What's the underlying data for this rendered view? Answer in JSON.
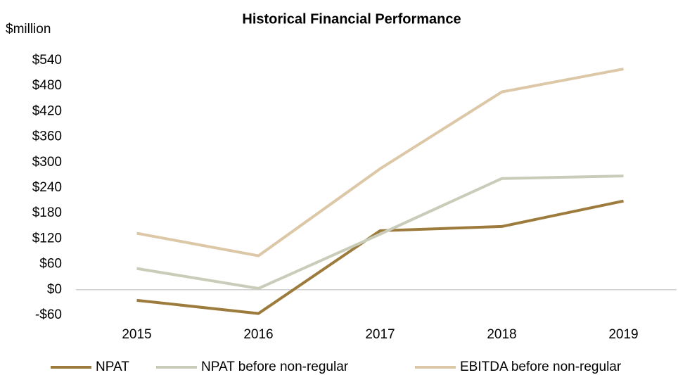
{
  "chart_data": {
    "type": "line",
    "title": "Historical Financial Performance",
    "y_label": "$million",
    "categories": [
      "2015",
      "2016",
      "2017",
      "2018",
      "2019"
    ],
    "series": [
      {
        "name": "NPAT",
        "color": "#9c7b3c",
        "values": [
          -25,
          -56,
          139,
          149,
          209
        ]
      },
      {
        "name": "NPAT before non-regular",
        "color": "#c9ccb9",
        "values": [
          50,
          3,
          131,
          262,
          268
        ]
      },
      {
        "name": "EBITDA before non-regular",
        "color": "#dcc7a7",
        "values": [
          133,
          80,
          285,
          466,
          520
        ]
      }
    ],
    "ylim": [
      -60,
      540
    ],
    "yticks": [
      {
        "value": -60,
        "label": "-$60"
      },
      {
        "value": 0,
        "label": "$0"
      },
      {
        "value": 60,
        "label": "$60"
      },
      {
        "value": 120,
        "label": "$120"
      },
      {
        "value": 180,
        "label": "$180"
      },
      {
        "value": 240,
        "label": "$240"
      },
      {
        "value": 300,
        "label": "$300"
      },
      {
        "value": 360,
        "label": "$360"
      },
      {
        "value": 420,
        "label": "$420"
      },
      {
        "value": 480,
        "label": "$480"
      },
      {
        "value": 540,
        "label": "$540"
      }
    ],
    "grid": false,
    "legend": "bottom"
  }
}
